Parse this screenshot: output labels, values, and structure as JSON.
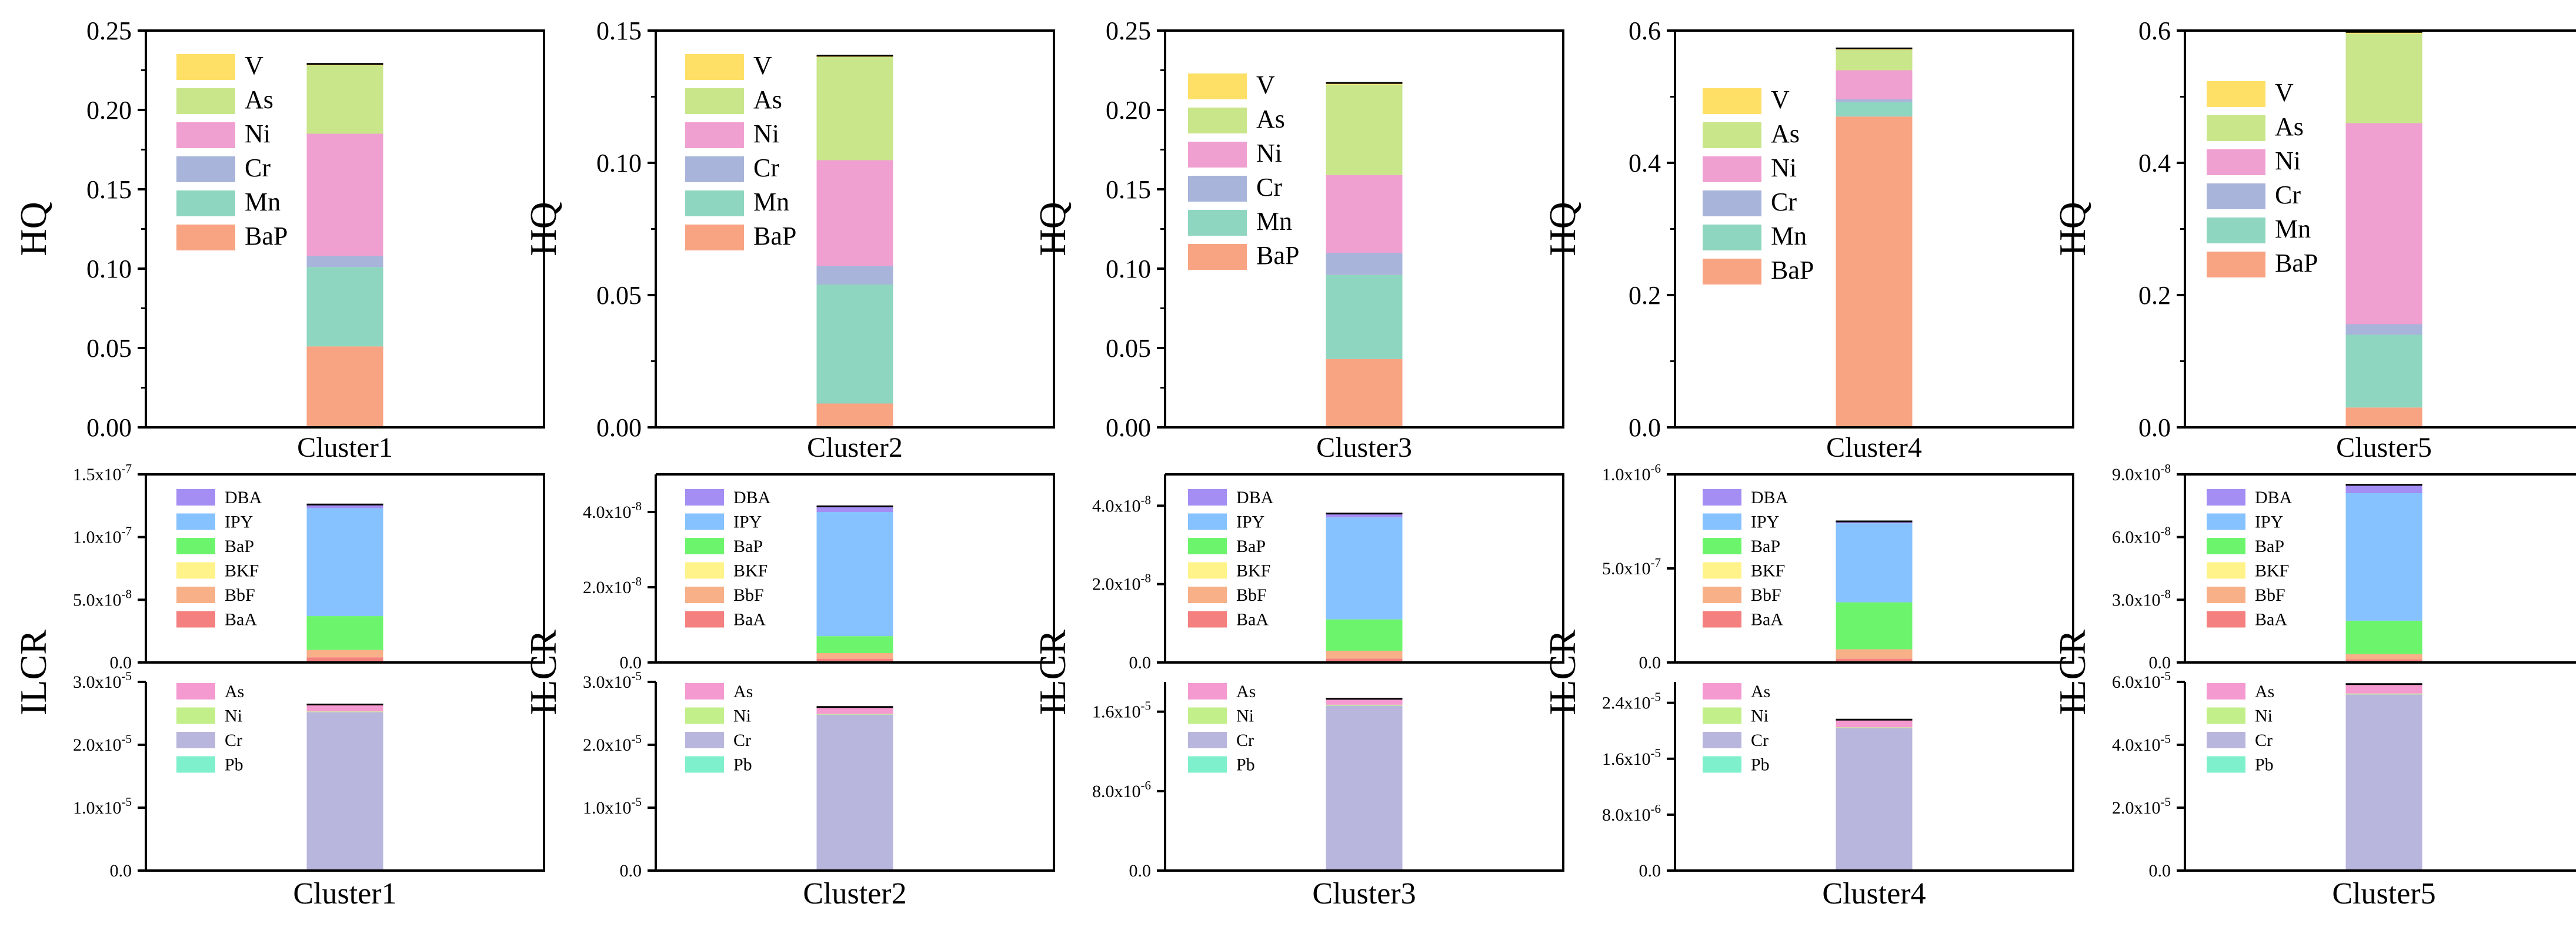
{
  "figure": {
    "title": ""
  },
  "colors": {
    "V": "#ffe066",
    "As": "#c9e68a",
    "Ni": "#f0a0d0",
    "Cr": "#a8b4da",
    "Mn": "#8ed6c0",
    "BaP": "#f8a382",
    "DBA": "#a48ef4",
    "IPY": "#86c2ff",
    "BaP_c": "#6cf56c",
    "BKF": "#fff38a",
    "BbF": "#f8b088",
    "BaA": "#f48080",
    "As_c": "#f59ad0",
    "Ni_c": "#c2ef8a",
    "Cr_c": "#b8b6dc",
    "Pb": "#7ff0cc"
  },
  "chart_data": [
    {
      "type": "bar",
      "panel": "HQ",
      "category": "Cluster1",
      "xlabel": "Cluster1",
      "ylabel": "HQ",
      "ylim": [
        0,
        0.25
      ],
      "yticks": [
        "0.00",
        "0.05",
        "0.10",
        "0.15",
        "0.20",
        "0.25"
      ],
      "legend": [
        "V",
        "As",
        "Ni",
        "Cr",
        "Mn",
        "BaP"
      ],
      "series": [
        {
          "name": "BaP",
          "value": 0.051
        },
        {
          "name": "Mn",
          "value": 0.05
        },
        {
          "name": "Cr",
          "value": 0.007
        },
        {
          "name": "Ni",
          "value": 0.077
        },
        {
          "name": "As",
          "value": 0.043
        },
        {
          "name": "V",
          "value": 0.001
        }
      ]
    },
    {
      "type": "bar",
      "panel": "HQ",
      "category": "Cluster2",
      "xlabel": "Cluster2",
      "ylabel": "HQ",
      "ylim": [
        0,
        0.15
      ],
      "yticks": [
        "0.00",
        "0.05",
        "0.10",
        "0.15"
      ],
      "legend": [
        "V",
        "As",
        "Ni",
        "Cr",
        "Mn",
        "BaP"
      ],
      "series": [
        {
          "name": "BaP",
          "value": 0.009
        },
        {
          "name": "Mn",
          "value": 0.045
        },
        {
          "name": "Cr",
          "value": 0.007
        },
        {
          "name": "Ni",
          "value": 0.04
        },
        {
          "name": "As",
          "value": 0.039
        },
        {
          "name": "V",
          "value": 0.0005
        }
      ]
    },
    {
      "type": "bar",
      "panel": "HQ",
      "category": "Cluster3",
      "xlabel": "Cluster3",
      "ylabel": "HQ",
      "ylim": [
        0,
        0.25
      ],
      "yticks": [
        "0.00",
        "0.05",
        "0.10",
        "0.15",
        "0.20",
        "0.25"
      ],
      "legend": [
        "V",
        "As",
        "Ni",
        "Cr",
        "Mn",
        "BaP"
      ],
      "series": [
        {
          "name": "BaP",
          "value": 0.043
        },
        {
          "name": "Mn",
          "value": 0.053
        },
        {
          "name": "Cr",
          "value": 0.014
        },
        {
          "name": "Ni",
          "value": 0.049
        },
        {
          "name": "As",
          "value": 0.057
        },
        {
          "name": "V",
          "value": 0.001
        }
      ]
    },
    {
      "type": "bar",
      "panel": "HQ",
      "category": "Cluster4",
      "xlabel": "Cluster4",
      "ylabel": "HQ",
      "ylim": [
        0,
        0.6
      ],
      "yticks": [
        "0.0",
        "0.2",
        "0.4",
        "0.6"
      ],
      "legend": [
        "V",
        "As",
        "Ni",
        "Cr",
        "Mn",
        "BaP"
      ],
      "series": [
        {
          "name": "BaP",
          "value": 0.47
        },
        {
          "name": "Mn",
          "value": 0.022
        },
        {
          "name": "Cr",
          "value": 0.004
        },
        {
          "name": "Ni",
          "value": 0.044
        },
        {
          "name": "As",
          "value": 0.031
        },
        {
          "name": "V",
          "value": 0.002
        }
      ]
    },
    {
      "type": "bar",
      "panel": "HQ",
      "category": "Cluster5",
      "xlabel": "Cluster5",
      "ylabel": "HQ",
      "ylim": [
        0,
        0.6
      ],
      "yticks": [
        "0.0",
        "0.2",
        "0.4",
        "0.6"
      ],
      "legend": [
        "V",
        "As",
        "Ni",
        "Cr",
        "Mn",
        "BaP"
      ],
      "series": [
        {
          "name": "BaP",
          "value": 0.03
        },
        {
          "name": "Mn",
          "value": 0.11
        },
        {
          "name": "Cr",
          "value": 0.016
        },
        {
          "name": "Ni",
          "value": 0.304
        },
        {
          "name": "As",
          "value": 0.135
        },
        {
          "name": "V",
          "value": 0.003
        }
      ]
    },
    {
      "type": "bar",
      "panel": "ILCR-PAH",
      "category": "Cluster1",
      "ylabel": "ILCR",
      "ylim": [
        0,
        1.5e-07
      ],
      "yticks": [
        {
          "m": "0.0",
          "e": ""
        },
        {
          "m": "5.0x10",
          "e": "-8"
        },
        {
          "m": "1.0x10",
          "e": "-7"
        },
        {
          "m": "1.5x10",
          "e": "-7"
        }
      ],
      "legend": [
        "DBA",
        "IPY",
        "BaP",
        "BKF",
        "BbF",
        "BaA"
      ],
      "series": [
        {
          "name": "BaA",
          "value": 4e-09
        },
        {
          "name": "BbF",
          "value": 6e-09
        },
        {
          "name": "BKF",
          "value": 0
        },
        {
          "name": "BaP",
          "value": 2.7e-08
        },
        {
          "name": "IPY",
          "value": 8.6e-08
        },
        {
          "name": "DBA",
          "value": 3e-09
        }
      ]
    },
    {
      "type": "bar",
      "panel": "ILCR-PAH",
      "category": "Cluster2",
      "ylabel": "ILCR",
      "ylim": [
        0,
        5e-08
      ],
      "yticks": [
        {
          "m": "0.0",
          "e": ""
        },
        {
          "m": "2.0x10",
          "e": "-8"
        },
        {
          "m": "4.0x10",
          "e": "-8"
        }
      ],
      "legend": [
        "DBA",
        "IPY",
        "BaP",
        "BKF",
        "BbF",
        "BaA"
      ],
      "series": [
        {
          "name": "BaA",
          "value": 1e-09
        },
        {
          "name": "BbF",
          "value": 1.5e-09
        },
        {
          "name": "BKF",
          "value": 0
        },
        {
          "name": "BaP",
          "value": 4.5e-09
        },
        {
          "name": "IPY",
          "value": 3.3e-08
        },
        {
          "name": "DBA",
          "value": 1.5e-09
        }
      ]
    },
    {
      "type": "bar",
      "panel": "ILCR-PAH",
      "category": "Cluster3",
      "ylabel": "ILCR",
      "ylim": [
        0,
        4.8e-08
      ],
      "yticks": [
        {
          "m": "0.0",
          "e": ""
        },
        {
          "m": "2.0x10",
          "e": "-8"
        },
        {
          "m": "4.0x10",
          "e": "-8"
        }
      ],
      "legend": [
        "DBA",
        "IPY",
        "BaP",
        "BKF",
        "BbF",
        "BaA"
      ],
      "series": [
        {
          "name": "BaA",
          "value": 1e-09
        },
        {
          "name": "BbF",
          "value": 2e-09
        },
        {
          "name": "BKF",
          "value": 0
        },
        {
          "name": "BaP",
          "value": 8e-09
        },
        {
          "name": "IPY",
          "value": 2.6e-08
        },
        {
          "name": "DBA",
          "value": 1e-09
        }
      ]
    },
    {
      "type": "bar",
      "panel": "ILCR-PAH",
      "category": "Cluster4",
      "ylabel": "ILCR",
      "ylim": [
        0,
        1e-06
      ],
      "yticks": [
        {
          "m": "0.0",
          "e": ""
        },
        {
          "m": "5.0x10",
          "e": "-7"
        },
        {
          "m": "1.0x10",
          "e": "-6"
        }
      ],
      "legend": [
        "DBA",
        "IPY",
        "BaP",
        "BKF",
        "BbF",
        "BaA"
      ],
      "series": [
        {
          "name": "BaA",
          "value": 2e-08
        },
        {
          "name": "BbF",
          "value": 5e-08
        },
        {
          "name": "BKF",
          "value": 0
        },
        {
          "name": "BaP",
          "value": 2.5e-07
        },
        {
          "name": "IPY",
          "value": 4.2e-07
        },
        {
          "name": "DBA",
          "value": 1e-08
        }
      ]
    },
    {
      "type": "bar",
      "panel": "ILCR-PAH",
      "category": "Cluster5",
      "ylabel": "ILCR",
      "ylim": [
        0,
        9e-08
      ],
      "yticks": [
        {
          "m": "0.0",
          "e": ""
        },
        {
          "m": "3.0x10",
          "e": "-8"
        },
        {
          "m": "6.0x10",
          "e": "-8"
        },
        {
          "m": "9.0x10",
          "e": "-8"
        }
      ],
      "legend": [
        "DBA",
        "IPY",
        "BaP",
        "BKF",
        "BbF",
        "BaA"
      ],
      "series": [
        {
          "name": "BaA",
          "value": 1.5e-09
        },
        {
          "name": "BbF",
          "value": 2.5e-09
        },
        {
          "name": "BKF",
          "value": 0
        },
        {
          "name": "BaP",
          "value": 1.6e-08
        },
        {
          "name": "IPY",
          "value": 6.1e-08
        },
        {
          "name": "DBA",
          "value": 4e-09
        }
      ]
    },
    {
      "type": "bar",
      "panel": "ILCR-metal",
      "category": "Cluster1",
      "xlabel": "Cluster1",
      "ylim": [
        0,
        3e-05
      ],
      "yticks": [
        {
          "m": "0.0",
          "e": ""
        },
        {
          "m": "1.0x10",
          "e": "-5"
        },
        {
          "m": "2.0x10",
          "e": "-5"
        },
        {
          "m": "3.0x10",
          "e": "-5"
        }
      ],
      "legend": [
        "As",
        "Ni",
        "Cr",
        "Pb"
      ],
      "series": [
        {
          "name": "Pb",
          "value": 0
        },
        {
          "name": "Cr",
          "value": 2.52e-05
        },
        {
          "name": "Ni",
          "value": 1e-07
        },
        {
          "name": "As",
          "value": 1.1e-06
        }
      ]
    },
    {
      "type": "bar",
      "panel": "ILCR-metal",
      "category": "Cluster2",
      "xlabel": "Cluster2",
      "ylim": [
        0,
        3e-05
      ],
      "yticks": [
        {
          "m": "0.0",
          "e": ""
        },
        {
          "m": "1.0x10",
          "e": "-5"
        },
        {
          "m": "2.0x10",
          "e": "-5"
        },
        {
          "m": "3.0x10",
          "e": "-5"
        }
      ],
      "legend": [
        "As",
        "Ni",
        "Cr",
        "Pb"
      ],
      "series": [
        {
          "name": "Pb",
          "value": 0
        },
        {
          "name": "Cr",
          "value": 2.48e-05
        },
        {
          "name": "Ni",
          "value": 1e-07
        },
        {
          "name": "As",
          "value": 1.1e-06
        }
      ]
    },
    {
      "type": "bar",
      "panel": "ILCR-metal",
      "category": "Cluster3",
      "xlabel": "Cluster3",
      "ylim": [
        0,
        1.9e-05
      ],
      "yticks": [
        {
          "m": "0.0",
          "e": ""
        },
        {
          "m": "8.0x10",
          "e": "-6"
        },
        {
          "m": "1.6x10",
          "e": "-5"
        }
      ],
      "legend": [
        "As",
        "Ni",
        "Cr",
        "Pb"
      ],
      "series": [
        {
          "name": "Pb",
          "value": 0
        },
        {
          "name": "Cr",
          "value": 1.66e-05
        },
        {
          "name": "Ni",
          "value": 1e-07
        },
        {
          "name": "As",
          "value": 6e-07
        }
      ]
    },
    {
      "type": "bar",
      "panel": "ILCR-metal",
      "category": "Cluster4",
      "xlabel": "Cluster4",
      "ylim": [
        0,
        2.7e-05
      ],
      "yticks": [
        {
          "m": "0.0",
          "e": ""
        },
        {
          "m": "8.0x10",
          "e": "-6"
        },
        {
          "m": "1.6x10",
          "e": "-5"
        },
        {
          "m": "2.4x10",
          "e": "-5"
        }
      ],
      "legend": [
        "As",
        "Ni",
        "Cr",
        "Pb"
      ],
      "series": [
        {
          "name": "Pb",
          "value": 0
        },
        {
          "name": "Cr",
          "value": 2.04e-05
        },
        {
          "name": "Ni",
          "value": 1e-07
        },
        {
          "name": "As",
          "value": 1.1e-06
        }
      ]
    },
    {
      "type": "bar",
      "panel": "ILCR-metal",
      "category": "Cluster5",
      "xlabel": "Cluster5",
      "ylim": [
        0,
        6e-05
      ],
      "yticks": [
        {
          "m": "0.0",
          "e": ""
        },
        {
          "m": "2.0x10",
          "e": "-5"
        },
        {
          "m": "4.0x10",
          "e": "-5"
        },
        {
          "m": "6.0x10",
          "e": "-5"
        }
      ],
      "legend": [
        "As",
        "Ni",
        "Cr",
        "Pb"
      ],
      "series": [
        {
          "name": "Pb",
          "value": 0
        },
        {
          "name": "Cr",
          "value": 5.6e-05
        },
        {
          "name": "Ni",
          "value": 3e-07
        },
        {
          "name": "As",
          "value": 3e-06
        }
      ]
    }
  ]
}
